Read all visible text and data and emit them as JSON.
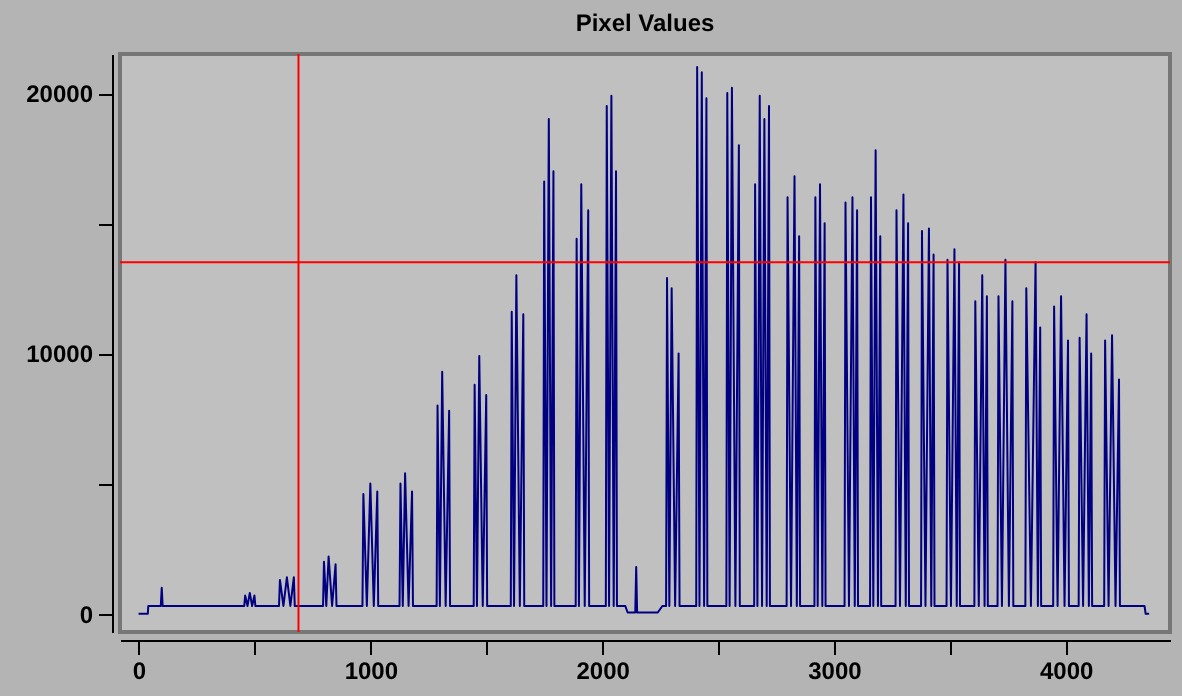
{
  "chart_data": {
    "type": "line",
    "title": "Pixel Values",
    "xlim": [
      -80,
      4450
    ],
    "ylim": [
      -700,
      21500
    ],
    "xticks": [
      0,
      {
        "value": 500,
        "label": null
      },
      1000,
      {
        "value": 1500,
        "label": null
      },
      2000,
      {
        "value": 2500,
        "label": null
      },
      3000,
      {
        "value": 3500,
        "label": null
      },
      4000
    ],
    "yticks": [
      0,
      {
        "value": 5000,
        "label": null
      },
      10000,
      {
        "value": 15000,
        "label": null
      },
      20000
    ],
    "grid": false,
    "ref_lines": [
      {
        "axis": "x",
        "value": 690,
        "color": "#ff0000"
      },
      {
        "axis": "y",
        "value": 13500,
        "color": "#ff0000"
      }
    ],
    "series": [
      {
        "color": "#000080",
        "x": [
          0,
          40,
          42,
          96,
          100,
          104,
          456,
          460,
          470,
          480,
          490,
          500,
          504,
          606,
          610,
          625,
          640,
          655,
          670,
          674,
          796,
          800,
          810,
          820,
          835,
          850,
          854,
          966,
          970,
          985,
          1000,
          1015,
          1030,
          1034,
          1126,
          1130,
          1140,
          1150,
          1165,
          1180,
          1184,
          1286,
          1290,
          1300,
          1310,
          1325,
          1340,
          1344,
          1446,
          1450,
          1460,
          1470,
          1485,
          1500,
          1504,
          1606,
          1610,
          1620,
          1630,
          1645,
          1660,
          1664,
          1746,
          1750,
          1760,
          1770,
          1780,
          1790,
          1794,
          1886,
          1890,
          1900,
          1910,
          1925,
          1940,
          1944,
          2016,
          2020,
          2030,
          2040,
          2050,
          2060,
          2064,
          2100,
          2110,
          2143,
          2147,
          2151,
          2240,
          2260,
          2276,
          2280,
          2290,
          2300,
          2315,
          2330,
          2334,
          2406,
          2410,
          2420,
          2430,
          2440,
          2450,
          2454,
          2536,
          2540,
          2550,
          2560,
          2575,
          2590,
          2594,
          2656,
          2660,
          2670,
          2680,
          2690,
          2700,
          2710,
          2720,
          2724,
          2796,
          2800,
          2815,
          2830,
          2840,
          2850,
          2854,
          2916,
          2920,
          2930,
          2940,
          2950,
          2960,
          2964,
          3046,
          3050,
          3065,
          3080,
          3090,
          3100,
          3104,
          3156,
          3160,
          3170,
          3180,
          3190,
          3200,
          3204,
          3266,
          3270,
          3285,
          3300,
          3310,
          3320,
          3324,
          3376,
          3380,
          3395,
          3410,
          3420,
          3430,
          3434,
          3486,
          3490,
          3505,
          3520,
          3530,
          3540,
          3544,
          3606,
          3610,
          3625,
          3640,
          3650,
          3660,
          3664,
          3706,
          3710,
          3725,
          3740,
          3755,
          3770,
          3774,
          3826,
          3830,
          3850,
          3870,
          3880,
          3890,
          3894,
          3946,
          3950,
          3965,
          3980,
          3995,
          4010,
          4014,
          4056,
          4060,
          4075,
          4090,
          4100,
          4110,
          4114,
          4166,
          4170,
          4185,
          4200,
          4215,
          4230,
          4234,
          4340,
          4345,
          4360
        ],
        "values": [
          0,
          0,
          300,
          300,
          1000,
          300,
          300,
          700,
          300,
          800,
          300,
          700,
          300,
          300,
          1300,
          300,
          1400,
          300,
          1400,
          300,
          300,
          2000,
          300,
          2200,
          300,
          1900,
          300,
          300,
          4600,
          300,
          5000,
          300,
          4700,
          300,
          300,
          5000,
          300,
          5400,
          300,
          4700,
          300,
          300,
          8000,
          300,
          9300,
          300,
          7800,
          300,
          300,
          8800,
          300,
          9900,
          300,
          8400,
          300,
          300,
          11600,
          300,
          13000,
          300,
          11500,
          300,
          300,
          16600,
          300,
          19000,
          300,
          17000,
          300,
          300,
          14400,
          300,
          16500,
          300,
          15500,
          300,
          300,
          19500,
          300,
          19900,
          300,
          17000,
          300,
          300,
          50,
          50,
          1800,
          50,
          50,
          300,
          300,
          12900,
          300,
          12500,
          300,
          10000,
          300,
          300,
          21000,
          300,
          20800,
          300,
          19800,
          300,
          300,
          20000,
          300,
          20200,
          300,
          18000,
          300,
          300,
          16500,
          300,
          19900,
          300,
          19000,
          300,
          19500,
          300,
          300,
          16000,
          300,
          16800,
          300,
          14500,
          300,
          300,
          16000,
          300,
          16500,
          300,
          15000,
          300,
          300,
          15800,
          300,
          16000,
          300,
          15500,
          300,
          300,
          16000,
          300,
          17800,
          300,
          14500,
          300,
          300,
          15500,
          300,
          16100,
          300,
          15000,
          300,
          300,
          14700,
          300,
          14800,
          300,
          13800,
          300,
          300,
          13600,
          300,
          14000,
          300,
          13500,
          300,
          300,
          12000,
          300,
          13000,
          300,
          12200,
          300,
          300,
          12200,
          300,
          13600,
          300,
          12000,
          300,
          300,
          12500,
          300,
          13500,
          300,
          11000,
          300,
          300,
          11800,
          300,
          12200,
          300,
          10500,
          300,
          300,
          10600,
          300,
          11500,
          300,
          10000,
          300,
          300,
          10500,
          300,
          10700,
          300,
          9000,
          300,
          300,
          0,
          0
        ]
      }
    ]
  }
}
